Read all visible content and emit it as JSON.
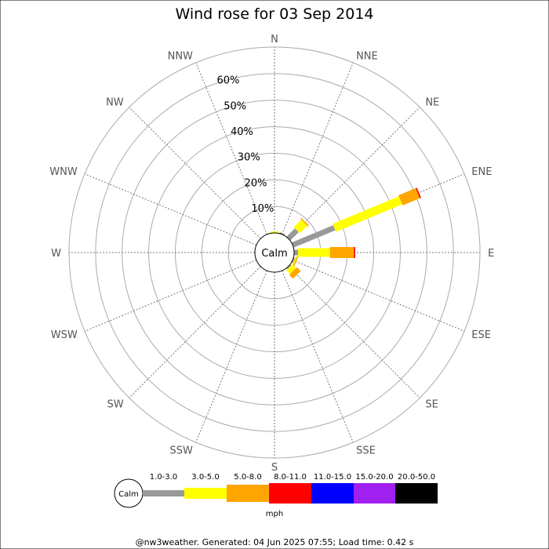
{
  "chart_data": {
    "type": "wind-rose",
    "title": "Wind rose for 03 Sep 2014",
    "directions": [
      "N",
      "NNE",
      "NE",
      "ENE",
      "E",
      "ESE",
      "SE",
      "SSE",
      "S",
      "SSW",
      "SW",
      "WSW",
      "W",
      "WNW",
      "NW",
      "NNW"
    ],
    "ring_labels": [
      "10%",
      "20%",
      "30%",
      "40%",
      "50%",
      "60%"
    ],
    "ring_values": [
      10,
      20,
      30,
      40,
      50,
      60
    ],
    "max_value": 70,
    "calm_label": "Calm",
    "speed_bins": [
      {
        "label": "1.0-3.0",
        "color": "#999999"
      },
      {
        "label": "3.0-5.0",
        "color": "#ffff00"
      },
      {
        "label": "5.0-8.0",
        "color": "#ffa500"
      },
      {
        "label": "8.0-11.0",
        "color": "#ff0000"
      },
      {
        "label": "11.0-15.0",
        "color": "#0000ff"
      },
      {
        "label": "15.0-20.0",
        "color": "#a020f0"
      },
      {
        "label": "20.0-50.0",
        "color": "#000000"
      }
    ],
    "unit": "mph",
    "series": [
      {
        "direction": "N",
        "values": [
          0.0,
          0.5,
          0,
          0,
          0,
          0,
          0
        ]
      },
      {
        "direction": "NNE",
        "values": [
          0.5,
          0.0,
          0,
          0,
          0,
          0,
          0
        ]
      },
      {
        "direction": "NE",
        "values": [
          4.5,
          4.0,
          0.5,
          0,
          0,
          0,
          0
        ]
      },
      {
        "direction": "ENE",
        "values": [
          17.0,
          27.0,
          7.0,
          0.5,
          0,
          0,
          0
        ]
      },
      {
        "direction": "E",
        "values": [
          1.5,
          12.0,
          9.0,
          0.5,
          0,
          0,
          0
        ]
      },
      {
        "direction": "ESE",
        "values": [
          0.5,
          0.5,
          0.5,
          0,
          0,
          0,
          0
        ]
      },
      {
        "direction": "SE",
        "values": [
          0.5,
          2.0,
          2.0,
          0,
          0,
          0,
          0
        ]
      }
    ]
  },
  "footer": "@nw3weather. Generated: 04 Jun 2025 07:55; Load time: 0.42 s"
}
